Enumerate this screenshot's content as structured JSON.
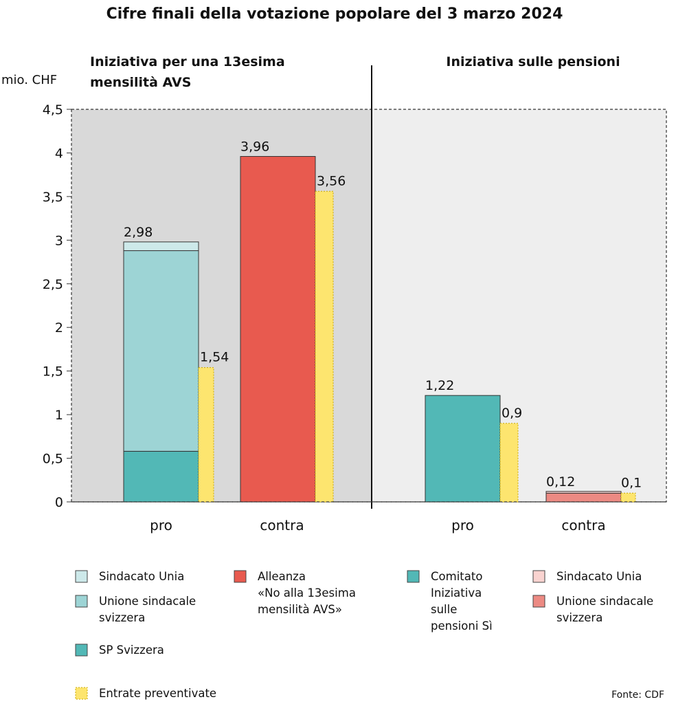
{
  "title": "Cifre finali della votazione popolare del 3 marzo 2024",
  "colors": {
    "unia_left": "#cde9ea",
    "uss_left": "#9dd4d5",
    "sp": "#52b8b6",
    "alleanza": "#e85a4f",
    "comitato": "#52b8b6",
    "unia_right": "#f9d3d0",
    "uss_right": "#ec8a83",
    "budget": "#fde56f",
    "panel_left_bg": "#d9d9d9",
    "panel_right_bg": "#eeeeee"
  },
  "chart_data": {
    "type": "bar",
    "stacked": true,
    "ylabel": "mio. CHF",
    "ylim": [
      0,
      4.5
    ],
    "yticks": [
      "0",
      "0,5",
      "1",
      "1,5",
      "2",
      "2,5",
      "3",
      "3,5",
      "4",
      "4,5"
    ],
    "panels": [
      {
        "title_lines": [
          "Iniziativa per una 13esima",
          "mensilità AVS"
        ],
        "categories": [
          {
            "label": "pro",
            "stack": [
              {
                "series": "SP Svizzera",
                "value": 0.58,
                "color_key": "sp"
              },
              {
                "series": "Unione sindacale svizzera",
                "value": 2.3,
                "color_key": "uss_left"
              },
              {
                "series": "Sindacato Unia",
                "value": 0.1,
                "color_key": "unia_left"
              }
            ],
            "total_label": "2,98",
            "budget": 1.54,
            "budget_label": "1,54"
          },
          {
            "label": "contra",
            "stack": [
              {
                "series": "Alleanza «No alla 13esima mensilità AVS»",
                "value": 3.96,
                "color_key": "alleanza"
              }
            ],
            "total_label": "3,96",
            "budget": 3.56,
            "budget_label": "3,56"
          }
        ]
      },
      {
        "title_lines": [
          "Iniziativa sulle pensioni"
        ],
        "categories": [
          {
            "label": "pro",
            "stack": [
              {
                "series": "Comitato Iniziativa sulle pensioni Sì",
                "value": 1.22,
                "color_key": "comitato"
              }
            ],
            "total_label": "1,22",
            "budget": 0.9,
            "budget_label": "0,9"
          },
          {
            "label": "contra",
            "stack": [
              {
                "series": "Unione sindacale svizzera",
                "value": 0.1,
                "color_key": "uss_right"
              },
              {
                "series": "Sindacato Unia",
                "value": 0.02,
                "color_key": "unia_right"
              }
            ],
            "total_label": "0,12",
            "budget": 0.1,
            "budget_label": "0,1"
          }
        ]
      }
    ],
    "legend": [
      {
        "lines": [
          "Sindacato Unia"
        ],
        "color_key": "unia_left"
      },
      {
        "lines": [
          "Unione sindacale",
          "svizzera"
        ],
        "color_key": "uss_left"
      },
      {
        "lines": [
          "SP Svizzera"
        ],
        "color_key": "sp"
      },
      {
        "lines": [
          "Alleanza",
          "«No alla 13esima",
          "mensilità AVS»"
        ],
        "color_key": "alleanza"
      },
      {
        "lines": [
          "Comitato",
          "Iniziativa",
          "sulle",
          "pensioni Sì"
        ],
        "color_key": "comitato"
      },
      {
        "lines": [
          "Sindacato Unia"
        ],
        "color_key": "unia_right"
      },
      {
        "lines": [
          "Unione sindacale",
          "svizzera"
        ],
        "color_key": "uss_right"
      },
      {
        "lines": [
          "Entrate preventivate"
        ],
        "color_key": "budget",
        "dashed": true
      }
    ],
    "source": "Fonte: CDF"
  }
}
